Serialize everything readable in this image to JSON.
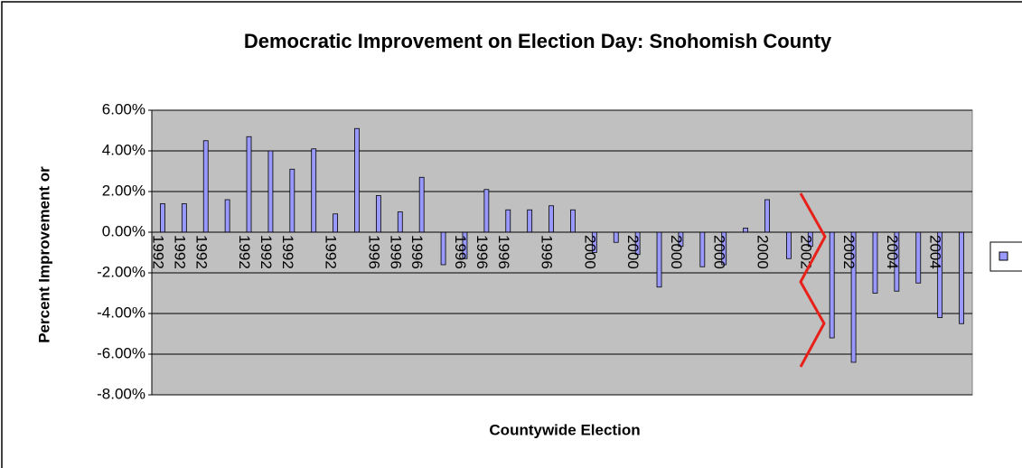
{
  "chart_data": {
    "type": "bar",
    "title": "Democratic Improvement on Election Day: Snohomish County",
    "y_label": "Percent Improvement or",
    "x_label": "Countywide Election",
    "categories": [
      "1992",
      "1992",
      "1992",
      null,
      "1992",
      "1992",
      "1992",
      null,
      "1992",
      null,
      "1996",
      "1996",
      "1996",
      null,
      "1996",
      "1996",
      "1996",
      null,
      "1996",
      null,
      "2000",
      null,
      "2000",
      null,
      "2000",
      null,
      "2000",
      null,
      "2000",
      null,
      "2002",
      null,
      "2002",
      null,
      "2004",
      null,
      "2004",
      null
    ],
    "values": [
      1.4,
      1.4,
      4.5,
      1.6,
      4.7,
      4.0,
      3.1,
      4.1,
      0.9,
      5.1,
      1.8,
      1.0,
      2.7,
      -1.6,
      -1.3,
      2.1,
      1.1,
      1.1,
      1.3,
      1.1,
      -1.0,
      -0.5,
      -1.1,
      -2.7,
      -0.7,
      -1.7,
      -1.6,
      0.2,
      1.6,
      -1.3,
      -0.7,
      -5.2,
      -6.4,
      -3.0,
      -2.9,
      -2.5,
      -4.2,
      -4.5
    ],
    "color": "#9999ff",
    "ylim": [
      -8,
      6
    ],
    "yticks": [
      {
        "value": -8,
        "label": "-8.00%"
      },
      {
        "value": -6,
        "label": "-6.00%"
      },
      {
        "value": -4,
        "label": "-4.00%"
      },
      {
        "value": -2,
        "label": "-2.00%"
      },
      {
        "value": 0,
        "label": "0.00%"
      },
      {
        "value": 2,
        "label": "2.00%"
      },
      {
        "value": 4,
        "label": "4.00%"
      },
      {
        "value": 6,
        "label": "6.00%"
      }
    ],
    "grid": true
  }
}
